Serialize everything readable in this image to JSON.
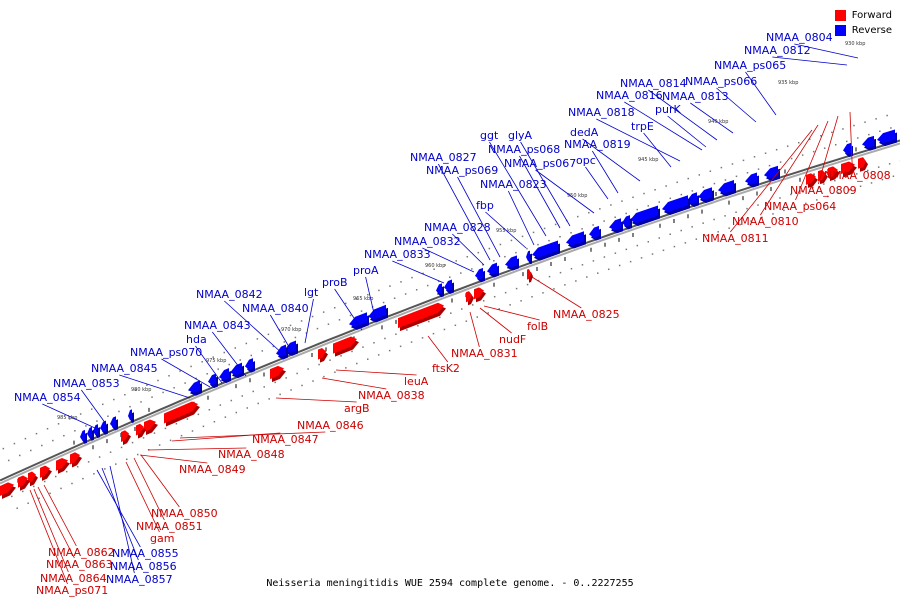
{
  "caption": "Neisseria meningitidis WUE 2594 complete genome. - 0..2227255",
  "legend": {
    "forward_label": "Forward",
    "reverse_label": "Reverse",
    "forward_color": "#ff0000",
    "reverse_color": "#0000ff"
  },
  "colors": {
    "forward_label": "#cc0000",
    "reverse_label": "#0000cc",
    "backbone": "#555555"
  },
  "tick_labels": [
    "930 kbp",
    "935 kbp",
    "940 kbp",
    "945 kbp",
    "950 kbp",
    "955 kbp",
    "960 kbp",
    "965 kbp",
    "970 kbp",
    "975 kbp",
    "980 kbp",
    "985 kbp"
  ],
  "reverse_genes": [
    "NMAA_0804",
    "NMAA_0812",
    "NMAA_ps065",
    "NMAA_ps066",
    "NMAA_0814",
    "NMAA_0813",
    "NMAA_0816",
    "purK",
    "NMAA_0818",
    "trpE",
    "dedA",
    "ggt",
    "glyA",
    "NMAA_0819",
    "NMAA_ps068",
    "opc",
    "NMAA_ps067",
    "NMAA_0827",
    "NMAA_ps069",
    "NMAA_0823",
    "fbp",
    "NMAA_0828",
    "NMAA_0832",
    "NMAA_0833",
    "proA",
    "proB",
    "lgt",
    "NMAA_0842",
    "NMAA_0840",
    "NMAA_0843",
    "hda",
    "NMAA_ps070",
    "NMAA_0845",
    "NMAA_0853",
    "NMAA_0854",
    "NMAA_0855",
    "NMAA_0856",
    "NMAA_0857"
  ],
  "forward_genes": [
    "NMAA_0808",
    "NMAA_0809",
    "NMAA_ps064",
    "NMAA_0810",
    "NMAA_0811",
    "NMAA_0825",
    "folB",
    "nudF",
    "NMAA_0831",
    "ftsK2",
    "leuA",
    "NMAA_0838",
    "argB",
    "NMAA_0846",
    "NMAA_0847",
    "NMAA_0848",
    "NMAA_0849",
    "NMAA_0850",
    "NMAA_0851",
    "gam",
    "NMAA_0862",
    "NMAA_0863",
    "NMAA_0864",
    "NMAA_ps071"
  ]
}
